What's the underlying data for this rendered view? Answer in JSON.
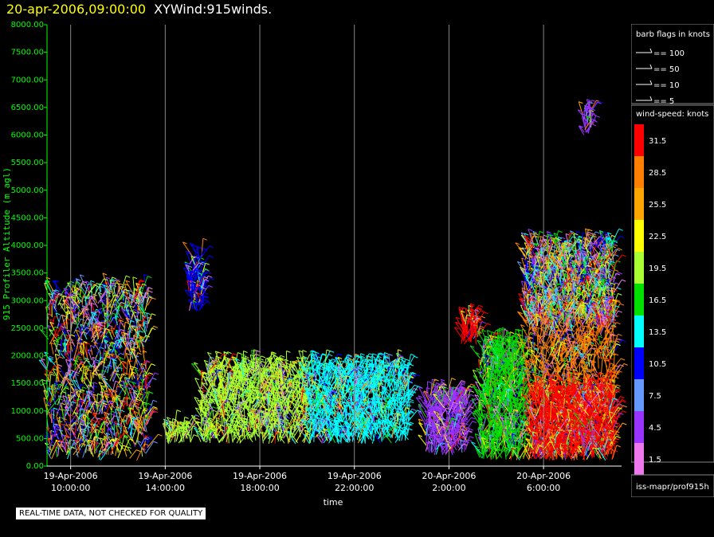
{
  "header": {
    "date": "20-apr-2006,09:00:00",
    "title": "XYWind:915winds."
  },
  "qc_note": "REAL-TIME DATA, NOT CHECKED FOR QUALITY",
  "legend": {
    "barb_title": "barb flags in knots",
    "barb_items": [
      "== 100",
      "== 50",
      "== 10",
      "== 5"
    ],
    "speed_title": "wind-speed: knots",
    "footer": "iss-mapr/prof915h"
  },
  "colors": {
    "axis": "#00ff00",
    "gridline": "#888888",
    "label": "#ffffff",
    "title_date": "#ffff00"
  },
  "chart_data": {
    "type": "scatter",
    "title": "XYWind:915winds.",
    "xlabel": "time",
    "ylabel": "915 Profiler Altitude (m agl)",
    "ylim": [
      0,
      8000
    ],
    "y_ticks": [
      "0.00",
      "500.00",
      "1000.00",
      "1500.00",
      "2000.00",
      "2500.00",
      "3000.00",
      "3500.00",
      "4000.00",
      "4500.00",
      "5000.00",
      "5500.00",
      "6000.00",
      "6500.00",
      "7000.00",
      "7500.00",
      "8000.00"
    ],
    "x_ticks": [
      {
        "date": "19-Apr-2006",
        "time": "10:00:00"
      },
      {
        "date": "19-Apr-2006",
        "time": "14:00:00"
      },
      {
        "date": "19-Apr-2006",
        "time": "18:00:00"
      },
      {
        "date": "19-Apr-2006",
        "time": "22:00:00"
      },
      {
        "date": "20-Apr-2006",
        "time": "2:00:00"
      },
      {
        "date": "20-Apr-2006",
        "time": "6:00:00"
      }
    ],
    "x_range_hours": [
      -1,
      23.3
    ],
    "grid": "vertical",
    "colorbar": {
      "title": "wind-speed: knots",
      "levels": [
        {
          "value": "31.5",
          "color": "#ff0000"
        },
        {
          "value": "28.5",
          "color": "#ff8000"
        },
        {
          "value": "25.5",
          "color": "#ffa500"
        },
        {
          "value": "22.5",
          "color": "#ffff00"
        },
        {
          "value": "19.5",
          "color": "#aaff33"
        },
        {
          "value": "16.5",
          "color": "#00e000"
        },
        {
          "value": "13.5",
          "color": "#00ffff"
        },
        {
          "value": "10.5",
          "color": "#0000ff"
        },
        {
          "value": "7.5",
          "color": "#6699ff"
        },
        {
          "value": "4.5",
          "color": "#9933ff"
        },
        {
          "value": "1.5",
          "color": "#ee77ee"
        }
      ]
    },
    "clusters": [
      {
        "t0": -1.0,
        "t1": 3.3,
        "h0": 100,
        "h1": 3200,
        "speed": "mixed"
      },
      {
        "t0": 4.0,
        "t1": 5.1,
        "h0": 400,
        "h1": 700,
        "speed": 19.5
      },
      {
        "t0": 5.0,
        "t1": 5.6,
        "h0": 2800,
        "h1": 3800,
        "speed": 10.5
      },
      {
        "t0": 5.5,
        "t1": 10.0,
        "h0": 400,
        "h1": 1800,
        "speed": 19.5
      },
      {
        "t0": 10.0,
        "t1": 14.3,
        "h0": 400,
        "h1": 1800,
        "speed": 13.5
      },
      {
        "t0": 15.0,
        "t1": 16.8,
        "h0": 200,
        "h1": 1300,
        "speed": 4.5
      },
      {
        "t0": 16.5,
        "t1": 17.3,
        "h0": 2200,
        "h1": 2700,
        "speed": 31.5
      },
      {
        "t0": 17.3,
        "t1": 19.2,
        "h0": 100,
        "h1": 2200,
        "speed": 16.5
      },
      {
        "t0": 19.3,
        "t1": 23.0,
        "h0": 100,
        "h1": 2800,
        "speed": 28.5
      },
      {
        "t0": 19.5,
        "t1": 23.0,
        "h0": 100,
        "h1": 1400,
        "speed": 31.5
      },
      {
        "t0": 19.2,
        "t1": 23.0,
        "h0": 2500,
        "h1": 4000,
        "speed": "mixed"
      },
      {
        "t0": 21.7,
        "t1": 22.1,
        "h0": 6000,
        "h1": 6500,
        "speed": 4.5
      }
    ]
  }
}
